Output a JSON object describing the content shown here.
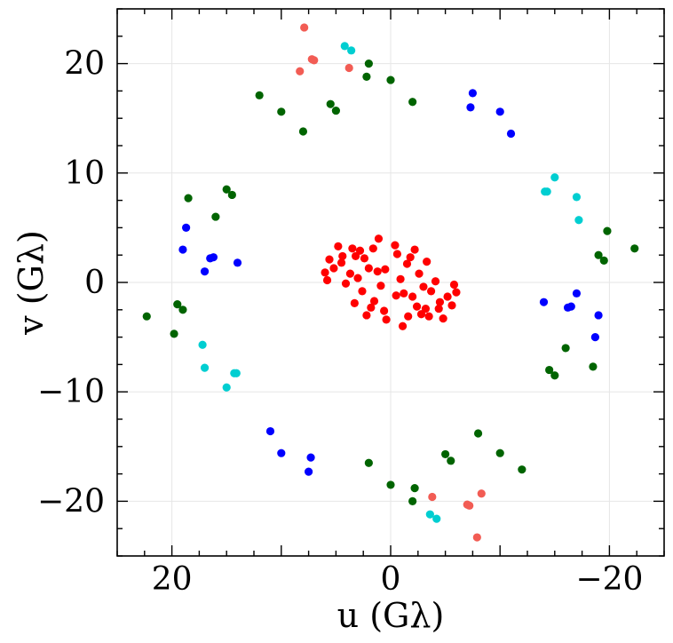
{
  "chart_data": {
    "type": "scatter",
    "title": "",
    "xlabel": "u (Gλ)",
    "ylabel": "v (Gλ)",
    "xlim": [
      25,
      -25
    ],
    "ylim": [
      -25,
      25
    ],
    "x_inverted": true,
    "grid": true,
    "x_ticks": [
      20,
      0,
      -20
    ],
    "x_tick_labels": [
      "20",
      "0",
      "−20"
    ],
    "y_ticks": [
      20,
      10,
      0,
      -10,
      -20
    ],
    "y_tick_labels": [
      "20",
      "10",
      "0",
      "−10",
      "−20"
    ],
    "series": [
      {
        "color": "#ff0000",
        "points": [
          [
            -2,
            -1.3
          ],
          [
            2,
            1.3
          ],
          [
            -0.5,
            -1.2
          ],
          [
            0.5,
            1.2
          ],
          [
            1.5,
            -1.7
          ],
          [
            -1.5,
            1.7
          ],
          [
            -3.5,
            -3.1
          ],
          [
            3.5,
            3.1
          ],
          [
            -5.2,
            -1.3
          ],
          [
            5.2,
            1.3
          ],
          [
            -6,
            -0.9
          ],
          [
            6,
            0.9
          ],
          [
            -3,
            -0.4
          ],
          [
            3,
            0.4
          ],
          [
            -4.1,
            0.1
          ],
          [
            4.1,
            -0.1
          ],
          [
            -2.4,
            -2.2
          ],
          [
            2.4,
            2.2
          ],
          [
            -4.8,
            -3.3
          ],
          [
            4.8,
            3.3
          ],
          [
            -2.2,
            3.0
          ],
          [
            2.2,
            -3.0
          ],
          [
            -3.3,
            1.9
          ],
          [
            3.3,
            -1.9
          ],
          [
            1.2,
            1.0
          ],
          [
            -1.2,
            -1.0
          ],
          [
            4.5,
            1.8
          ],
          [
            -4.5,
            -1.8
          ],
          [
            3.2,
            2.4
          ],
          [
            -3.2,
            -2.4
          ],
          [
            0.4,
            -3.4
          ],
          [
            -0.4,
            3.4
          ],
          [
            -0.6,
            2.6
          ],
          [
            0.6,
            -2.6
          ],
          [
            -1.8,
            2.3
          ],
          [
            1.8,
            -2.3
          ],
          [
            2.6,
            -0.8
          ],
          [
            -2.6,
            0.8
          ],
          [
            5.8,
            0.2
          ],
          [
            -5.8,
            -0.2
          ],
          [
            1.1,
            4.0
          ],
          [
            -1.1,
            -4.0
          ],
          [
            3.7,
            0.8
          ],
          [
            -3.7,
            -0.8
          ],
          [
            -4.4,
            -2.4
          ],
          [
            4.4,
            2.4
          ],
          [
            -5.6,
            -2.1
          ],
          [
            5.6,
            2.1
          ],
          [
            1.6,
            3.1
          ],
          [
            -1.6,
            -3.1
          ],
          [
            -0.9,
            0.3
          ],
          [
            0.9,
            -0.3
          ],
          [
            2.8,
            2.9
          ],
          [
            -2.8,
            -2.9
          ]
        ]
      },
      {
        "color": "#006400",
        "points": [
          [
            2,
            20
          ],
          [
            -2,
            -20
          ],
          [
            0,
            18.5
          ],
          [
            0,
            -18.5
          ],
          [
            -2,
            16.5
          ],
          [
            2,
            -16.5
          ],
          [
            5.5,
            16.3
          ],
          [
            -5.5,
            -16.3
          ],
          [
            8,
            13.8
          ],
          [
            -8,
            -13.8
          ],
          [
            10,
            15.6
          ],
          [
            -10,
            -15.6
          ],
          [
            12,
            17.1
          ],
          [
            -12,
            -17.1
          ],
          [
            15,
            8.5
          ],
          [
            -15,
            -8.5
          ],
          [
            18.5,
            7.7
          ],
          [
            -18.5,
            -7.7
          ],
          [
            16,
            6
          ],
          [
            -16,
            -6
          ],
          [
            19.5,
            -2
          ],
          [
            -19.5,
            2
          ],
          [
            22.3,
            -3.1
          ],
          [
            -22.3,
            3.1
          ],
          [
            19.8,
            -4.7
          ],
          [
            -19.8,
            4.7
          ],
          [
            19,
            -2.5
          ],
          [
            -19,
            2.5
          ],
          [
            14.5,
            8.0
          ],
          [
            -14.5,
            -8.0
          ],
          [
            2.2,
            18.8
          ],
          [
            -2.2,
            -18.8
          ],
          [
            5,
            15.7
          ],
          [
            -5,
            -15.7
          ]
        ]
      },
      {
        "color": "#0000ff",
        "points": [
          [
            -7.5,
            17.3
          ],
          [
            7.5,
            -17.3
          ],
          [
            -7.3,
            16
          ],
          [
            7.3,
            -16
          ],
          [
            -10,
            15.6
          ],
          [
            10,
            -15.6
          ],
          [
            -11,
            13.6
          ],
          [
            11,
            -13.6
          ],
          [
            19,
            3
          ],
          [
            -19,
            -3
          ],
          [
            18.7,
            5
          ],
          [
            -18.7,
            -5
          ],
          [
            16.2,
            2.3
          ],
          [
            -16.2,
            -2.3
          ],
          [
            17,
            1
          ],
          [
            -17,
            -1
          ],
          [
            14,
            1.8
          ],
          [
            -14,
            -1.8
          ],
          [
            16.5,
            2.2
          ],
          [
            -16.5,
            -2.2
          ]
        ]
      },
      {
        "color": "#00ced1",
        "points": [
          [
            4.2,
            21.6
          ],
          [
            -4.2,
            -21.6
          ],
          [
            3.6,
            21.2
          ],
          [
            -3.6,
            -21.2
          ],
          [
            -15,
            9.6
          ],
          [
            15,
            -9.6
          ],
          [
            -14.1,
            8.3
          ],
          [
            14.1,
            -8.3
          ],
          [
            -17,
            7.8
          ],
          [
            17,
            -7.8
          ],
          [
            -17.2,
            5.7
          ],
          [
            17.2,
            -5.7
          ],
          [
            -14.3,
            8.3
          ],
          [
            14.3,
            -8.3
          ]
        ]
      },
      {
        "color": "#f25c54",
        "points": [
          [
            7.9,
            23.3
          ],
          [
            -7.9,
            -23.3
          ],
          [
            7.2,
            20.4
          ],
          [
            -7.2,
            -20.4
          ],
          [
            8.3,
            19.3
          ],
          [
            -8.3,
            -19.3
          ],
          [
            3.8,
            19.6
          ],
          [
            -3.8,
            -19.6
          ],
          [
            7.0,
            20.3
          ],
          [
            -7.0,
            -20.3
          ]
        ]
      }
    ]
  }
}
